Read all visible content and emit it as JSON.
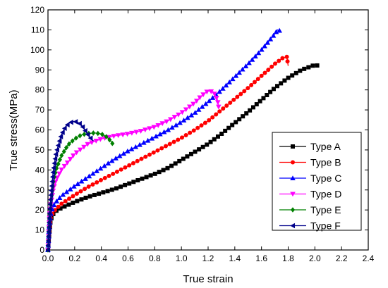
{
  "chart_data": {
    "type": "line",
    "title": "",
    "xlabel": "True strain",
    "ylabel": "True stress(MPa)",
    "xlim": [
      0.0,
      2.4
    ],
    "ylim": [
      0,
      120
    ],
    "x_ticks": [
      "0.0",
      "0.2",
      "0.4",
      "0.6",
      "0.8",
      "1.0",
      "1.2",
      "1.4",
      "1.6",
      "1.8",
      "2.0",
      "2.2",
      "2.4"
    ],
    "y_ticks": [
      "0",
      "10",
      "20",
      "30",
      "40",
      "50",
      "60",
      "70",
      "80",
      "90",
      "100",
      "110",
      "120"
    ],
    "grid": false,
    "legend_position": "bottom-right",
    "series": [
      {
        "name": "Type A",
        "color": "#000000",
        "marker": "square",
        "points": [
          [
            0.0,
            0
          ],
          [
            0.01,
            8
          ],
          [
            0.02,
            15
          ],
          [
            0.04,
            18
          ],
          [
            0.06,
            19.5
          ],
          [
            0.1,
            21
          ],
          [
            0.2,
            24
          ],
          [
            0.3,
            26.5
          ],
          [
            0.4,
            28.5
          ],
          [
            0.5,
            30.5
          ],
          [
            0.6,
            33
          ],
          [
            0.7,
            35.5
          ],
          [
            0.8,
            38
          ],
          [
            0.9,
            41
          ],
          [
            1.0,
            45
          ],
          [
            1.1,
            49
          ],
          [
            1.2,
            53
          ],
          [
            1.3,
            58
          ],
          [
            1.4,
            63.5
          ],
          [
            1.5,
            69
          ],
          [
            1.6,
            75
          ],
          [
            1.7,
            81
          ],
          [
            1.8,
            86
          ],
          [
            1.9,
            90
          ],
          [
            2.0,
            92.5
          ],
          [
            2.03,
            92
          ]
        ]
      },
      {
        "name": "Type B",
        "color": "#ff0000",
        "marker": "circle",
        "points": [
          [
            0.0,
            0
          ],
          [
            0.01,
            10
          ],
          [
            0.02,
            16
          ],
          [
            0.04,
            19
          ],
          [
            0.06,
            20.5
          ],
          [
            0.1,
            23
          ],
          [
            0.2,
            27.5
          ],
          [
            0.3,
            31.5
          ],
          [
            0.4,
            35
          ],
          [
            0.5,
            38.5
          ],
          [
            0.6,
            42
          ],
          [
            0.7,
            45.5
          ],
          [
            0.8,
            49
          ],
          [
            0.9,
            52.5
          ],
          [
            1.0,
            56
          ],
          [
            1.1,
            60
          ],
          [
            1.2,
            64.5
          ],
          [
            1.3,
            70
          ],
          [
            1.4,
            75.5
          ],
          [
            1.5,
            81
          ],
          [
            1.6,
            87
          ],
          [
            1.7,
            93
          ],
          [
            1.76,
            96
          ],
          [
            1.79,
            96.5
          ],
          [
            1.8,
            92
          ]
        ]
      },
      {
        "name": "Type C",
        "color": "#0000ff",
        "marker": "triangle-up",
        "points": [
          [
            0.0,
            0
          ],
          [
            0.01,
            12
          ],
          [
            0.02,
            18
          ],
          [
            0.04,
            22
          ],
          [
            0.06,
            24
          ],
          [
            0.1,
            27
          ],
          [
            0.2,
            32
          ],
          [
            0.3,
            36.5
          ],
          [
            0.4,
            41
          ],
          [
            0.5,
            45.5
          ],
          [
            0.6,
            49.5
          ],
          [
            0.7,
            53
          ],
          [
            0.8,
            56.5
          ],
          [
            0.9,
            60
          ],
          [
            1.0,
            64
          ],
          [
            1.1,
            68.5
          ],
          [
            1.2,
            74
          ],
          [
            1.3,
            80
          ],
          [
            1.4,
            86.5
          ],
          [
            1.5,
            93
          ],
          [
            1.6,
            100
          ],
          [
            1.7,
            108
          ],
          [
            1.72,
            110
          ],
          [
            1.74,
            109.5
          ]
        ]
      },
      {
        "name": "Type D",
        "color": "#ff00ff",
        "marker": "triangle-down",
        "points": [
          [
            0.0,
            0
          ],
          [
            0.01,
            15
          ],
          [
            0.02,
            22
          ],
          [
            0.04,
            30
          ],
          [
            0.06,
            35
          ],
          [
            0.1,
            40
          ],
          [
            0.2,
            48
          ],
          [
            0.3,
            53
          ],
          [
            0.4,
            55.5
          ],
          [
            0.5,
            57
          ],
          [
            0.6,
            58
          ],
          [
            0.7,
            59.5
          ],
          [
            0.8,
            61.5
          ],
          [
            0.9,
            64.5
          ],
          [
            1.0,
            68.5
          ],
          [
            1.1,
            73.5
          ],
          [
            1.15,
            77
          ],
          [
            1.2,
            79.5
          ],
          [
            1.24,
            79
          ],
          [
            1.27,
            75
          ],
          [
            1.28,
            71
          ]
        ]
      },
      {
        "name": "Type E",
        "color": "#008000",
        "marker": "diamond",
        "points": [
          [
            0.0,
            0
          ],
          [
            0.01,
            15
          ],
          [
            0.02,
            24
          ],
          [
            0.04,
            34
          ],
          [
            0.06,
            40
          ],
          [
            0.1,
            47
          ],
          [
            0.15,
            52.5
          ],
          [
            0.2,
            55.5
          ],
          [
            0.25,
            57.5
          ],
          [
            0.3,
            58.2
          ],
          [
            0.35,
            58.5
          ],
          [
            0.4,
            58
          ],
          [
            0.44,
            56.5
          ],
          [
            0.47,
            54.5
          ],
          [
            0.49,
            52.5
          ]
        ]
      },
      {
        "name": "Type F",
        "color": "#00008b",
        "marker": "triangle-left",
        "points": [
          [
            0.0,
            0
          ],
          [
            0.01,
            16
          ],
          [
            0.02,
            26
          ],
          [
            0.04,
            40
          ],
          [
            0.06,
            48
          ],
          [
            0.08,
            53
          ],
          [
            0.1,
            57.5
          ],
          [
            0.13,
            61.5
          ],
          [
            0.16,
            63.5
          ],
          [
            0.19,
            64.2
          ],
          [
            0.22,
            64
          ],
          [
            0.25,
            62.5
          ],
          [
            0.28,
            59.5
          ],
          [
            0.31,
            56.5
          ],
          [
            0.34,
            54.5
          ]
        ]
      }
    ]
  }
}
